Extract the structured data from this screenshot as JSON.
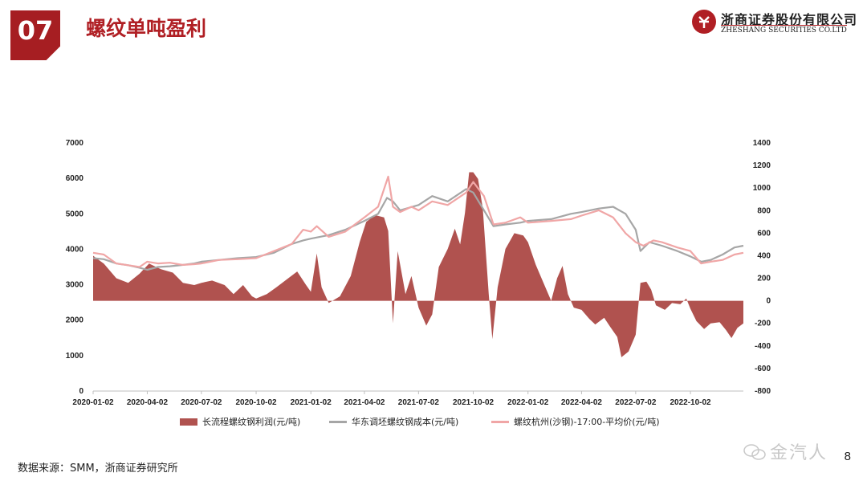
{
  "header": {
    "section_number": "07",
    "title": "螺纹单吨盈利"
  },
  "logo": {
    "name_cn": "浙商证券股份有限公司",
    "name_en": "ZHESHANG SECURITIES CO.LTD"
  },
  "colors": {
    "accent": "#a61e22",
    "profit_fill": "#b0524f",
    "cost_line": "#a6a6a6",
    "price_line": "#f0a6a6"
  },
  "chart_data": {
    "type": "area",
    "x_tick_labels": [
      "2020-01-02",
      "2020-04-02",
      "2020-07-02",
      "2020-10-02",
      "2021-01-02",
      "2021-04-02",
      "2021-07-02",
      "2021-10-02",
      "2022-01-02",
      "2022-04-02",
      "2022-07-02",
      "2022-10-02"
    ],
    "x_range": [
      "2020-01-02",
      "2022-12-30"
    ],
    "y_left": {
      "ticks": [
        0,
        1000,
        2000,
        3000,
        4000,
        5000,
        6000,
        7000
      ],
      "range": [
        0,
        7000
      ]
    },
    "y_right": {
      "ticks": [
        -800,
        -600,
        -400,
        -200,
        0,
        200,
        400,
        600,
        800,
        1000,
        1200,
        1400
      ],
      "range": [
        -800,
        1400
      ]
    },
    "grid": false,
    "legend_position": "bottom",
    "series": [
      {
        "name": "长流程螺纹钢利润(元/吨)",
        "kind": "area",
        "axis": "right",
        "points": [
          [
            "2020-01-02",
            400
          ],
          [
            "2020-01-20",
            330
          ],
          [
            "2020-02-10",
            200
          ],
          [
            "2020-03-01",
            160
          ],
          [
            "2020-03-20",
            240
          ],
          [
            "2020-04-05",
            330
          ],
          [
            "2020-04-25",
            280
          ],
          [
            "2020-05-15",
            250
          ],
          [
            "2020-06-01",
            160
          ],
          [
            "2020-06-20",
            140
          ],
          [
            "2020-07-02",
            160
          ],
          [
            "2020-07-20",
            180
          ],
          [
            "2020-08-10",
            140
          ],
          [
            "2020-08-25",
            60
          ],
          [
            "2020-09-10",
            140
          ],
          [
            "2020-09-25",
            40
          ],
          [
            "2020-10-02",
            20
          ],
          [
            "2020-10-20",
            60
          ],
          [
            "2020-11-05",
            120
          ],
          [
            "2020-11-25",
            200
          ],
          [
            "2020-12-10",
            260
          ],
          [
            "2020-12-25",
            140
          ],
          [
            "2021-01-02",
            80
          ],
          [
            "2021-01-12",
            420
          ],
          [
            "2021-01-20",
            120
          ],
          [
            "2021-02-01",
            -20
          ],
          [
            "2021-02-20",
            40
          ],
          [
            "2021-03-10",
            220
          ],
          [
            "2021-03-25",
            520
          ],
          [
            "2021-04-05",
            700
          ],
          [
            "2021-04-20",
            760
          ],
          [
            "2021-05-05",
            740
          ],
          [
            "2021-05-12",
            620
          ],
          [
            "2021-05-20",
            -200
          ],
          [
            "2021-05-28",
            440
          ],
          [
            "2021-06-10",
            60
          ],
          [
            "2021-06-20",
            220
          ],
          [
            "2021-07-02",
            -60
          ],
          [
            "2021-07-15",
            -220
          ],
          [
            "2021-07-25",
            -120
          ],
          [
            "2021-08-05",
            300
          ],
          [
            "2021-08-20",
            460
          ],
          [
            "2021-09-01",
            640
          ],
          [
            "2021-09-10",
            500
          ],
          [
            "2021-09-18",
            780
          ],
          [
            "2021-09-25",
            1140
          ],
          [
            "2021-10-02",
            1140
          ],
          [
            "2021-10-10",
            1080
          ],
          [
            "2021-10-18",
            820
          ],
          [
            "2021-10-28",
            60
          ],
          [
            "2021-11-03",
            -340
          ],
          [
            "2021-11-12",
            120
          ],
          [
            "2021-11-25",
            460
          ],
          [
            "2021-12-10",
            600
          ],
          [
            "2021-12-25",
            580
          ],
          [
            "2022-01-02",
            520
          ],
          [
            "2022-01-15",
            320
          ],
          [
            "2022-01-28",
            160
          ],
          [
            "2022-02-10",
            0
          ],
          [
            "2022-02-20",
            200
          ],
          [
            "2022-03-01",
            310
          ],
          [
            "2022-03-10",
            60
          ],
          [
            "2022-03-20",
            -60
          ],
          [
            "2022-04-02",
            -80
          ],
          [
            "2022-04-15",
            -160
          ],
          [
            "2022-04-25",
            -210
          ],
          [
            "2022-05-10",
            -150
          ],
          [
            "2022-05-20",
            -230
          ],
          [
            "2022-06-01",
            -320
          ],
          [
            "2022-06-08",
            -500
          ],
          [
            "2022-06-20",
            -450
          ],
          [
            "2022-07-02",
            -300
          ],
          [
            "2022-07-10",
            160
          ],
          [
            "2022-07-20",
            170
          ],
          [
            "2022-07-28",
            100
          ],
          [
            "2022-08-05",
            -40
          ],
          [
            "2022-08-20",
            -80
          ],
          [
            "2022-09-01",
            -20
          ],
          [
            "2022-09-15",
            -30
          ],
          [
            "2022-09-25",
            20
          ],
          [
            "2022-10-02",
            -70
          ],
          [
            "2022-10-12",
            -180
          ],
          [
            "2022-10-25",
            -250
          ],
          [
            "2022-11-05",
            -200
          ],
          [
            "2022-11-20",
            -190
          ],
          [
            "2022-12-01",
            -260
          ],
          [
            "2022-12-10",
            -330
          ],
          [
            "2022-12-20",
            -240
          ],
          [
            "2022-12-30",
            -200
          ]
        ]
      },
      {
        "name": "华东调坯螺纹钢成本(元/吨)",
        "kind": "line",
        "axis": "left",
        "points": [
          [
            "2020-01-02",
            3750
          ],
          [
            "2020-01-20",
            3720
          ],
          [
            "2020-02-10",
            3600
          ],
          [
            "2020-03-01",
            3550
          ],
          [
            "2020-03-20",
            3480
          ],
          [
            "2020-04-02",
            3420
          ],
          [
            "2020-04-20",
            3500
          ],
          [
            "2020-05-10",
            3520
          ],
          [
            "2020-06-01",
            3560
          ],
          [
            "2020-06-20",
            3600
          ],
          [
            "2020-07-02",
            3650
          ],
          [
            "2020-08-01",
            3700
          ],
          [
            "2020-09-01",
            3750
          ],
          [
            "2020-10-02",
            3780
          ],
          [
            "2020-11-01",
            3900
          ],
          [
            "2020-12-01",
            4150
          ],
          [
            "2020-12-20",
            4250
          ],
          [
            "2021-01-02",
            4300
          ],
          [
            "2021-02-01",
            4400
          ],
          [
            "2021-03-01",
            4550
          ],
          [
            "2021-04-02",
            4800
          ],
          [
            "2021-04-25",
            5000
          ],
          [
            "2021-05-10",
            5450
          ],
          [
            "2021-05-20",
            5350
          ],
          [
            "2021-06-01",
            5100
          ],
          [
            "2021-07-02",
            5250
          ],
          [
            "2021-07-25",
            5500
          ],
          [
            "2021-08-20",
            5350
          ],
          [
            "2021-09-20",
            5700
          ],
          [
            "2021-10-02",
            5600
          ],
          [
            "2021-10-20",
            5100
          ],
          [
            "2021-11-05",
            4650
          ],
          [
            "2021-11-25",
            4700
          ],
          [
            "2021-12-20",
            4750
          ],
          [
            "2022-01-02",
            4800
          ],
          [
            "2022-02-10",
            4850
          ],
          [
            "2022-03-15",
            5000
          ],
          [
            "2022-04-02",
            5050
          ],
          [
            "2022-05-01",
            5150
          ],
          [
            "2022-05-25",
            5200
          ],
          [
            "2022-06-15",
            5000
          ],
          [
            "2022-07-02",
            4550
          ],
          [
            "2022-07-10",
            3950
          ],
          [
            "2022-07-25",
            4200
          ],
          [
            "2022-08-15",
            4100
          ],
          [
            "2022-09-10",
            3950
          ],
          [
            "2022-10-02",
            3800
          ],
          [
            "2022-10-20",
            3650
          ],
          [
            "2022-11-05",
            3700
          ],
          [
            "2022-11-25",
            3850
          ],
          [
            "2022-12-15",
            4050
          ],
          [
            "2022-12-30",
            4100
          ]
        ]
      },
      {
        "name": "螺纹杭州(沙钢)-17:00-平均价(元/吨)",
        "kind": "line",
        "axis": "left",
        "points": [
          [
            "2020-01-02",
            3900
          ],
          [
            "2020-01-20",
            3850
          ],
          [
            "2020-02-10",
            3600
          ],
          [
            "2020-03-01",
            3550
          ],
          [
            "2020-03-20",
            3500
          ],
          [
            "2020-04-02",
            3650
          ],
          [
            "2020-04-20",
            3600
          ],
          [
            "2020-05-10",
            3620
          ],
          [
            "2020-06-01",
            3560
          ],
          [
            "2020-06-20",
            3580
          ],
          [
            "2020-07-02",
            3600
          ],
          [
            "2020-08-01",
            3700
          ],
          [
            "2020-09-01",
            3720
          ],
          [
            "2020-10-02",
            3750
          ],
          [
            "2020-11-01",
            3950
          ],
          [
            "2020-12-01",
            4150
          ],
          [
            "2020-12-20",
            4550
          ],
          [
            "2021-01-02",
            4500
          ],
          [
            "2021-01-12",
            4650
          ],
          [
            "2021-02-01",
            4350
          ],
          [
            "2021-03-01",
            4500
          ],
          [
            "2021-04-02",
            4900
          ],
          [
            "2021-04-25",
            5200
          ],
          [
            "2021-05-12",
            6050
          ],
          [
            "2021-05-20",
            5200
          ],
          [
            "2021-06-01",
            5050
          ],
          [
            "2021-06-20",
            5200
          ],
          [
            "2021-07-02",
            5100
          ],
          [
            "2021-07-25",
            5350
          ],
          [
            "2021-08-20",
            5250
          ],
          [
            "2021-09-20",
            5600
          ],
          [
            "2021-10-02",
            5900
          ],
          [
            "2021-10-20",
            5500
          ],
          [
            "2021-11-05",
            4700
          ],
          [
            "2021-11-25",
            4750
          ],
          [
            "2021-12-20",
            4900
          ],
          [
            "2022-01-02",
            4750
          ],
          [
            "2022-02-10",
            4800
          ],
          [
            "2022-03-15",
            4850
          ],
          [
            "2022-04-02",
            4950
          ],
          [
            "2022-05-01",
            5100
          ],
          [
            "2022-05-25",
            4900
          ],
          [
            "2022-06-15",
            4450
          ],
          [
            "2022-07-02",
            4200
          ],
          [
            "2022-07-15",
            4100
          ],
          [
            "2022-08-01",
            4250
          ],
          [
            "2022-08-15",
            4200
          ],
          [
            "2022-09-10",
            4050
          ],
          [
            "2022-10-02",
            3950
          ],
          [
            "2022-10-20",
            3600
          ],
          [
            "2022-11-05",
            3650
          ],
          [
            "2022-11-25",
            3700
          ],
          [
            "2022-12-15",
            3850
          ],
          [
            "2022-12-30",
            3900
          ]
        ]
      }
    ]
  },
  "footer": {
    "source": "数据来源：SMM，浙商证券研究所",
    "page_number": "8",
    "watermark": "金汽人"
  }
}
